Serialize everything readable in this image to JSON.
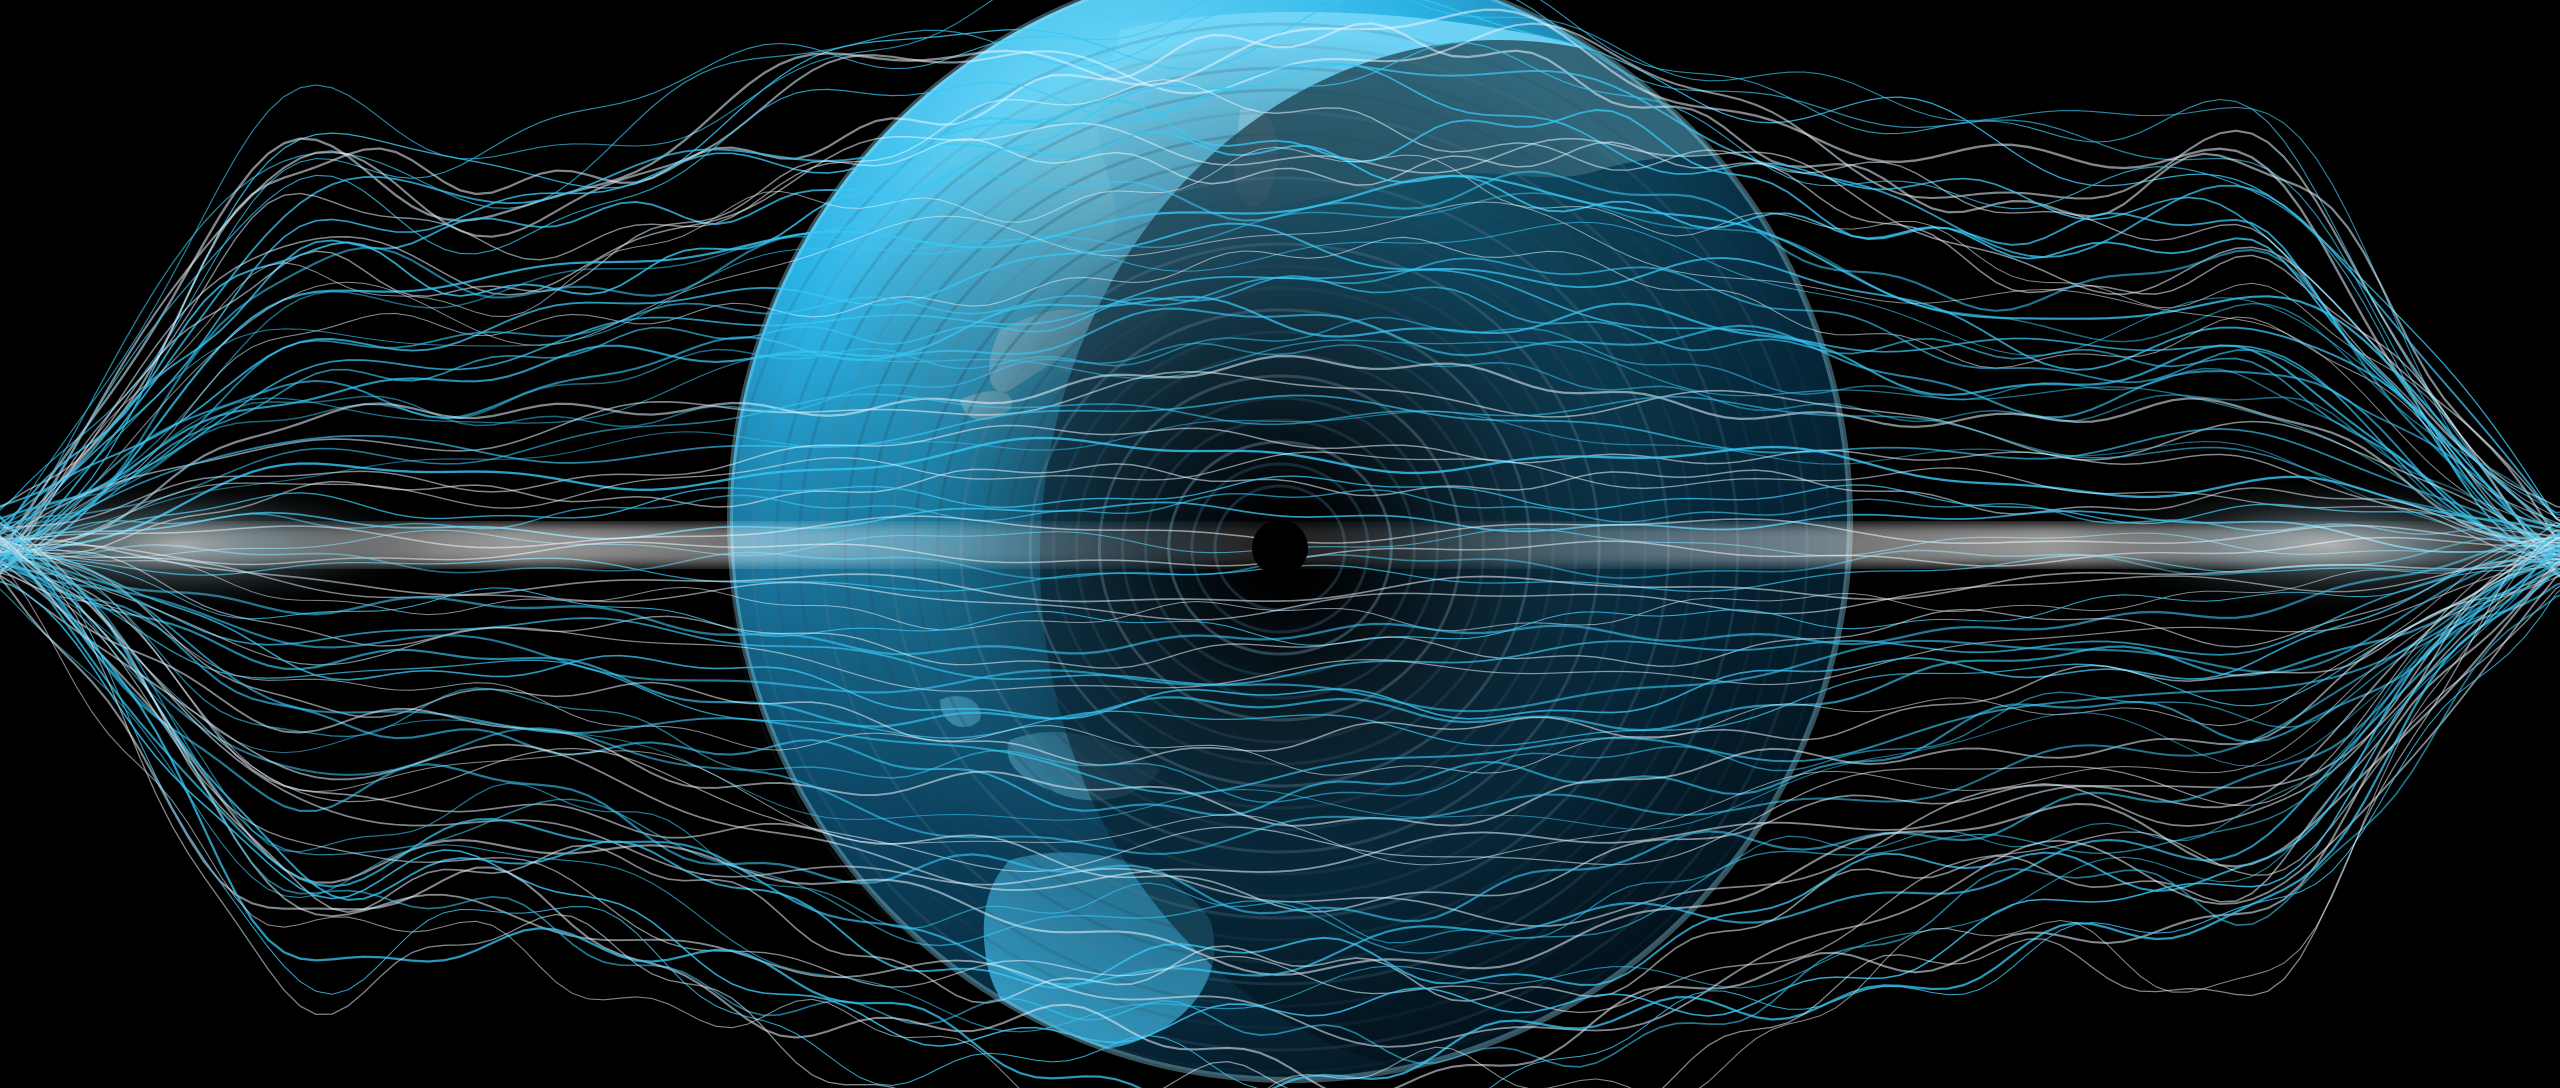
{
  "scene": {
    "subject": "globe-with-energy-wave-lines",
    "colors": {
      "background": "#000000",
      "globe_light": "#7fe0ff",
      "globe_mid": "#1fa7d9",
      "globe_dark": "#0b2233",
      "continent": "#6fd4f5",
      "wave_cyan": "#38c8f5",
      "wave_white": "#eaf6ff",
      "vortex_core": "#000000"
    }
  }
}
